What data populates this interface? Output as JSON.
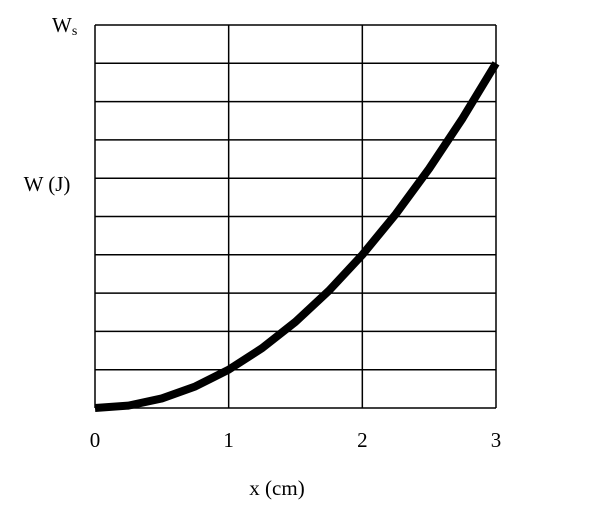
{
  "chart_data": {
    "type": "line",
    "ylabel": "W (J)",
    "xlabel": "x (cm)",
    "x": [
      0,
      0.25,
      0.5,
      0.75,
      1,
      1.25,
      1.5,
      1.75,
      2,
      2.25,
      2.5,
      2.75,
      3
    ],
    "series": [
      {
        "color": "#000000",
        "values": [
          0,
          0.0625,
          0.25,
          0.5625,
          1,
          1.5625,
          2.25,
          3.0625,
          4,
          5.0625,
          6.25,
          7.5625,
          9
        ]
      }
    ],
    "xlim": [
      0,
      3
    ],
    "xticks": [
      0,
      1,
      2,
      3
    ],
    "ylim": [
      0,
      10
    ],
    "yticks": [
      0,
      1,
      2,
      3,
      4,
      5,
      6,
      7,
      8,
      9,
      {
        "value": 10,
        "label": "Ws"
      }
    ],
    "grid": true
  }
}
